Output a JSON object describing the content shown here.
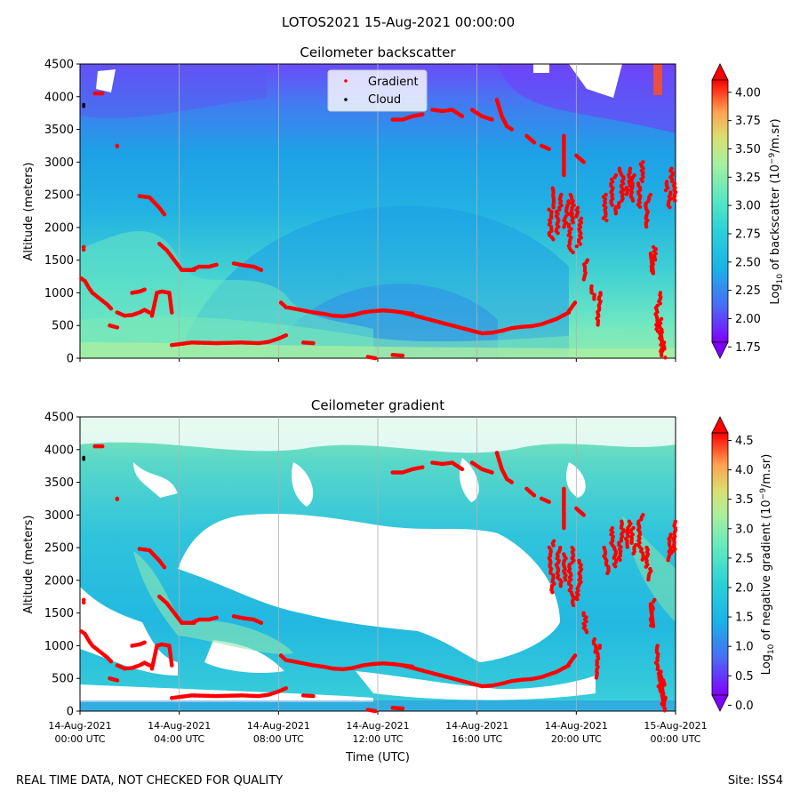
{
  "figure": {
    "title": "LOTOS2021 15-Aug-2021 00:00:00",
    "footer_left": "REAL TIME DATA, NOT CHECKED FOR QUALITY",
    "footer_right": "Site: ISS4"
  },
  "colors": {
    "gradient_marker": "#ff0000",
    "cloud_marker": "#000000",
    "colormap": [
      "#8000ff",
      "#4a6cf5",
      "#1ab2e8",
      "#4ae5c5",
      "#8ee8a0",
      "#c8f08a",
      "#ffb360",
      "#ff0000"
    ]
  },
  "chart_data": [
    {
      "type": "heatmap",
      "title": "Ceilometer backscatter",
      "xlabel": "",
      "ylabel": "Altitude (meters)",
      "xlim": [
        0,
        24
      ],
      "ylim": [
        0,
        4500
      ],
      "yticks": [
        0,
        500,
        1000,
        1500,
        2000,
        2500,
        3000,
        3500,
        4000,
        4500
      ],
      "colorbar": {
        "label": "Log$_{10}$ of backscatter (10$^{-9}$/m.sr)",
        "label_parts": [
          "Log",
          "10",
          " of backscatter (10",
          "−9",
          "/m.sr)"
        ],
        "ticks": [
          "1.75",
          "2.00",
          "2.25",
          "2.50",
          "2.75",
          "3.00",
          "3.25",
          "3.50",
          "3.75",
          "4.00"
        ],
        "range": [
          1.65,
          4.25
        ]
      },
      "legend": {
        "position": "top-center",
        "entries": [
          "Gradient",
          "Cloud"
        ]
      }
    },
    {
      "type": "heatmap",
      "title": "Ceilometer gradient",
      "xlabel": "Time (UTC)",
      "ylabel": "Altitude (meters)",
      "xlim": [
        0,
        24
      ],
      "ylim": [
        0,
        4500
      ],
      "yticks": [
        0,
        500,
        1000,
        1500,
        2000,
        2500,
        3000,
        3500,
        4000,
        4500
      ],
      "colorbar": {
        "label": "Log$_{10}$ of negative gradient (10$^{-9}$/m.sr)",
        "label_parts": [
          "Log",
          "10",
          " of negative gradient (10",
          "−9",
          "/m.sr)"
        ],
        "ticks": [
          "0.0",
          "0.5",
          "1.0",
          "1.5",
          "2.0",
          "2.5",
          "3.0",
          "3.5",
          "4.0",
          "4.5"
        ],
        "range": [
          -0.1,
          4.9
        ]
      }
    }
  ],
  "x_axis": {
    "ticks": [
      0,
      4,
      8,
      12,
      16,
      20,
      24
    ],
    "tick_labels": [
      [
        "14-Aug-2021",
        "00:00 UTC"
      ],
      [
        "14-Aug-2021",
        "04:00 UTC"
      ],
      [
        "14-Aug-2021",
        "08:00 UTC"
      ],
      [
        "14-Aug-2021",
        "12:00 UTC"
      ],
      [
        "14-Aug-2021",
        "16:00 UTC"
      ],
      [
        "14-Aug-2021",
        "20:00 UTC"
      ],
      [
        "15-Aug-2021",
        "00:00 UTC"
      ]
    ]
  },
  "series": {
    "gradient_name": "Gradient",
    "cloud_name": "Cloud",
    "gradient_segments": [
      [
        [
          0.05,
          1220
        ],
        [
          0.2,
          1180
        ],
        [
          0.35,
          1080
        ],
        [
          0.5,
          1000
        ],
        [
          0.7,
          940
        ],
        [
          0.9,
          880
        ],
        [
          1.1,
          820
        ],
        [
          1.25,
          760
        ]
      ],
      [
        [
          1.2,
          500
        ],
        [
          1.5,
          470
        ]
      ],
      [
        [
          1.5,
          700
        ],
        [
          1.8,
          650
        ],
        [
          2.1,
          660
        ],
        [
          2.4,
          700
        ],
        [
          2.6,
          740
        ],
        [
          2.8,
          700
        ]
      ],
      [
        [
          2.9,
          650
        ],
        [
          3.1,
          1000
        ],
        [
          3.3,
          1020
        ],
        [
          3.6,
          1000
        ],
        [
          3.7,
          700
        ]
      ],
      [
        [
          2.4,
          2480
        ],
        [
          2.8,
          2460
        ],
        [
          2.95,
          2400
        ],
        [
          3.2,
          2300
        ],
        [
          3.4,
          2200
        ]
      ],
      [
        [
          3.2,
          1750
        ],
        [
          3.5,
          1650
        ],
        [
          3.8,
          1500
        ],
        [
          4.1,
          1350
        ],
        [
          4.4,
          1350
        ],
        [
          4.6,
          1350
        ]
      ],
      [
        [
          4.5,
          1350
        ],
        [
          4.8,
          1400
        ],
        [
          5.2,
          1400
        ],
        [
          5.5,
          1430
        ]
      ],
      [
        [
          6.2,
          1450
        ],
        [
          6.6,
          1420
        ],
        [
          7.0,
          1400
        ],
        [
          7.3,
          1350
        ]
      ],
      [
        [
          3.7,
          200
        ],
        [
          4.5,
          240
        ],
        [
          5.5,
          230
        ],
        [
          6.5,
          240
        ],
        [
          7.2,
          230
        ],
        [
          7.6,
          250
        ],
        [
          8.0,
          300
        ],
        [
          8.3,
          350
        ]
      ],
      [
        [
          8.1,
          850
        ],
        [
          8.3,
          780
        ],
        [
          8.6,
          760
        ],
        [
          9.0,
          730
        ],
        [
          9.4,
          700
        ],
        [
          9.8,
          680
        ],
        [
          10.2,
          650
        ],
        [
          10.6,
          640
        ],
        [
          11.0,
          660
        ],
        [
          11.4,
          700
        ],
        [
          11.8,
          720
        ],
        [
          12.2,
          730
        ],
        [
          12.6,
          720
        ],
        [
          13.0,
          700
        ],
        [
          13.4,
          680
        ]
      ],
      [
        [
          13.0,
          700
        ],
        [
          13.6,
          640
        ],
        [
          14.2,
          580
        ],
        [
          14.8,
          520
        ],
        [
          15.4,
          460
        ],
        [
          15.8,
          420
        ],
        [
          16.2,
          380
        ],
        [
          16.6,
          390
        ],
        [
          17.0,
          420
        ],
        [
          17.4,
          460
        ],
        [
          17.8,
          480
        ],
        [
          18.2,
          490
        ],
        [
          18.6,
          520
        ],
        [
          18.9,
          560
        ],
        [
          19.2,
          600
        ],
        [
          19.5,
          660
        ],
        [
          19.7,
          700
        ]
      ],
      [
        [
          19.7,
          720
        ],
        [
          19.95,
          850
        ]
      ],
      [
        [
          9.0,
          240
        ],
        [
          9.4,
          230
        ]
      ],
      [
        [
          11.6,
          20
        ],
        [
          11.9,
          0
        ]
      ],
      [
        [
          12.6,
          50
        ],
        [
          13.0,
          40
        ]
      ],
      [
        [
          12.6,
          3650
        ],
        [
          13.0,
          3650
        ],
        [
          13.4,
          3700
        ],
        [
          13.8,
          3730
        ]
      ],
      [
        [
          14.2,
          3800
        ],
        [
          14.6,
          3780
        ],
        [
          15.0,
          3800
        ],
        [
          15.4,
          3700
        ]
      ],
      [
        [
          15.8,
          3800
        ],
        [
          16.2,
          3700
        ],
        [
          16.6,
          3650
        ]
      ],
      [
        [
          16.8,
          3950
        ],
        [
          17.0,
          3700
        ],
        [
          17.2,
          3550
        ],
        [
          17.4,
          3500
        ]
      ],
      [
        [
          18.0,
          3400
        ],
        [
          18.3,
          3300
        ]
      ],
      [
        [
          18.6,
          3250
        ],
        [
          18.9,
          3200
        ]
      ],
      [
        [
          19.5,
          3400
        ],
        [
          19.5,
          2800
        ]
      ],
      [
        [
          20.0,
          3100
        ],
        [
          20.3,
          3000
        ]
      ],
      [
        [
          0.15,
          1700
        ],
        [
          0.15,
          1660
        ]
      ],
      [
        [
          0.6,
          4050
        ],
        [
          0.9,
          4050
        ]
      ],
      [
        [
          2.1,
          1000
        ],
        [
          2.4,
          1020
        ],
        [
          2.6,
          1050
        ]
      ],
      [
        [
          1.5,
          3250
        ],
        [
          1.5,
          3240
        ]
      ],
      [
        [
          23.0,
          1600
        ],
        [
          23.1,
          1300
        ]
      ],
      [
        [
          23.4,
          400
        ],
        [
          23.5,
          150
        ]
      ]
    ],
    "gradient_columns": [
      [
        19.0,
        1800,
        2600
      ],
      [
        19.3,
        1900,
        2500
      ],
      [
        19.6,
        2000,
        2400
      ],
      [
        19.8,
        1600,
        2500
      ],
      [
        20.1,
        1700,
        2300
      ],
      [
        20.4,
        1200,
        1500
      ],
      [
        20.7,
        900,
        1100
      ],
      [
        20.9,
        500,
        1000
      ],
      [
        21.2,
        2100,
        2500
      ],
      [
        21.5,
        2200,
        2800
      ],
      [
        21.8,
        2300,
        2900
      ],
      [
        22.1,
        2500,
        2900
      ],
      [
        22.3,
        2400,
        2800
      ],
      [
        22.6,
        2300,
        3000
      ],
      [
        22.9,
        2000,
        2500
      ],
      [
        23.1,
        1300,
        1700
      ],
      [
        23.3,
        300,
        1000
      ],
      [
        23.5,
        0,
        400
      ],
      [
        23.7,
        2300,
        2700
      ],
      [
        23.9,
        2400,
        2900
      ],
      [
        23.45,
        100,
        600
      ]
    ],
    "cloud_points": [
      [
        0.15,
        3880
      ],
      [
        0.15,
        3850
      ]
    ]
  }
}
